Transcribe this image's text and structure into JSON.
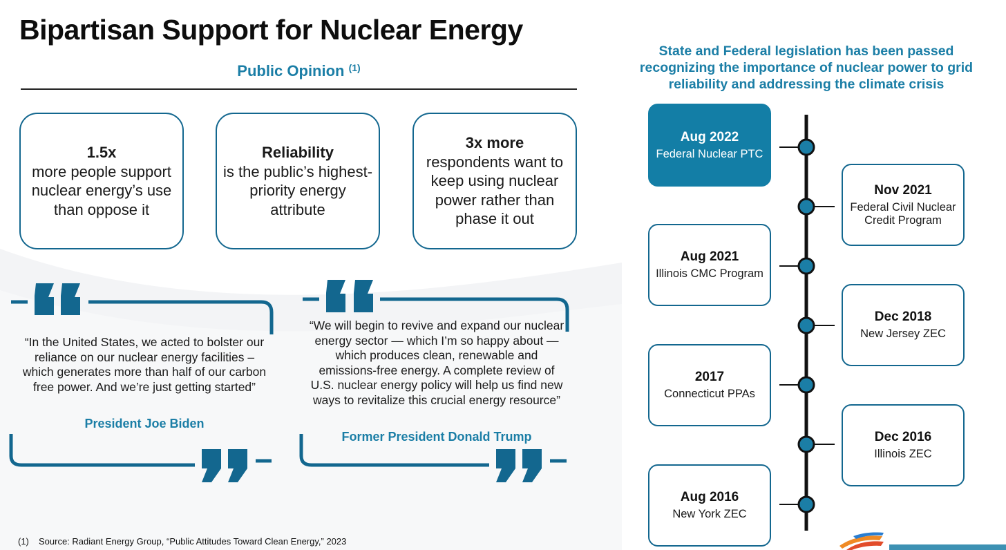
{
  "title": "Bipartisan Support for Nuclear Energy",
  "public_opinion": {
    "heading": "Public Opinion",
    "footnote_ref": "(1)"
  },
  "stats": [
    {
      "highlight": "1.5x",
      "body": "more people support nuclear energy’s use than oppose it"
    },
    {
      "highlight": "Reliability",
      "body": "is the public’s highest-priority energy attribute"
    },
    {
      "highlight": "3x more",
      "body": "respondents want to keep using nuclear power rather than phase it out"
    }
  ],
  "quotes": [
    {
      "text": "“In the United States, we acted to bolster our reliance on our nuclear energy facilities – which generates more than half of our carbon free power. And we’re just getting started”",
      "author": "President Joe Biden"
    },
    {
      "text": "“We will begin to revive and expand our nuclear energy sector — which I’m so happy about — which produces clean, renewable and emissions-free energy. A complete review of U.S. nuclear energy policy will help us find new ways to revitalize this crucial energy resource”",
      "author": "Former President Donald Trump"
    }
  ],
  "legislation": {
    "heading": "State and Federal legislation has been passed recognizing the importance of nuclear power to grid reliability and addressing the climate crisis",
    "items": [
      {
        "date": "Aug 2022",
        "desc": "Federal Nuclear PTC",
        "highlighted": true
      },
      {
        "date": "Nov 2021",
        "desc": "Federal Civil Nuclear Credit Program",
        "highlighted": false
      },
      {
        "date": "Aug 2021",
        "desc": "Illinois CMC Program",
        "highlighted": false
      },
      {
        "date": "Dec 2018",
        "desc": "New Jersey ZEC",
        "highlighted": false
      },
      {
        "date": "2017",
        "desc": "Connecticut PPAs",
        "highlighted": false
      },
      {
        "date": "Dec 2016",
        "desc": "Illinois ZEC",
        "highlighted": false
      },
      {
        "date": "Aug 2016",
        "desc": "New York ZEC",
        "highlighted": false
      }
    ]
  },
  "footnote": {
    "number": "(1)",
    "text": "Source: Radiant Energy Group, “Public Attitudes Toward Clean Energy,” 2023"
  },
  "colors": {
    "accent": "#1b7ea6",
    "frame": "#13678f",
    "quote_mark": "#13678f",
    "timeline_node": "#1b7ea6"
  },
  "icons": {
    "open_quote": "open-quote-icon",
    "close_quote": "close-quote-icon",
    "timeline_node": "timeline-node-icon",
    "logo": "company-logo-icon"
  }
}
